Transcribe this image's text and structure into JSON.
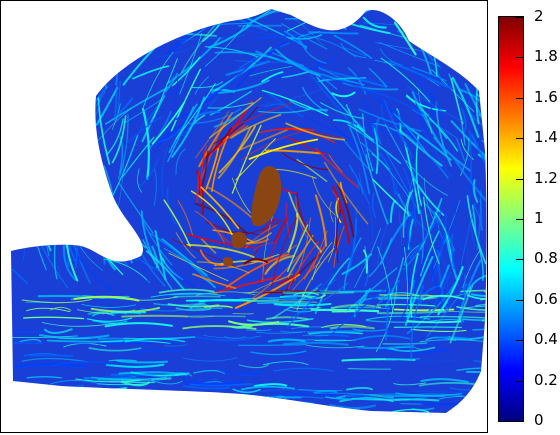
{
  "colorbar": {
    "ticks": [
      "0",
      "0.2",
      "0.4",
      "0.6",
      "0.8",
      "1",
      "1.2",
      "1.4",
      "1.6",
      "1.8",
      "2"
    ],
    "min": 0,
    "max": 2,
    "colormap": [
      "#00007f",
      "#0000ff",
      "#007fff",
      "#00ffff",
      "#7fff7f",
      "#ffff00",
      "#ff7f00",
      "#ff0000",
      "#7f0000"
    ]
  },
  "colors": {
    "land": "#8b4513",
    "background": "#ffffff",
    "ocean_base": "#1a3fd6"
  }
}
